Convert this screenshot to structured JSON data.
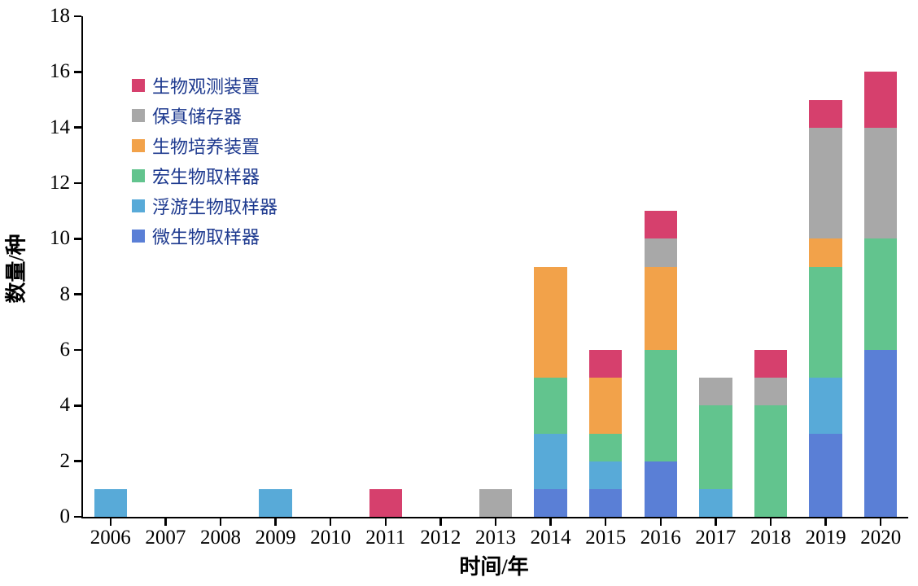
{
  "chart_data": {
    "type": "bar",
    "stacked": true,
    "title": "",
    "xlabel": "时间/年",
    "ylabel": "数量/种",
    "categories": [
      "2006",
      "2007",
      "2008",
      "2009",
      "2010",
      "2011",
      "2012",
      "2013",
      "2014",
      "2015",
      "2016",
      "2017",
      "2018",
      "2019",
      "2020"
    ],
    "series": [
      {
        "name": "微生物取样器",
        "color": "#5a7fd6",
        "values": [
          0,
          0,
          0,
          0,
          0,
          0,
          0,
          0,
          1,
          1,
          2,
          0,
          0,
          3,
          6
        ]
      },
      {
        "name": "浮游生物取样器",
        "color": "#58aad8",
        "values": [
          1,
          0,
          0,
          1,
          0,
          0,
          0,
          0,
          2,
          1,
          0,
          1,
          0,
          2,
          0
        ]
      },
      {
        "name": "宏生物取样器",
        "color": "#62c48e",
        "values": [
          0,
          0,
          0,
          0,
          0,
          0,
          0,
          0,
          2,
          1,
          4,
          3,
          4,
          4,
          4
        ]
      },
      {
        "name": "生物培养装置",
        "color": "#f2a24a",
        "values": [
          0,
          0,
          0,
          0,
          0,
          0,
          0,
          0,
          4,
          2,
          3,
          0,
          0,
          1,
          0
        ]
      },
      {
        "name": "保真储存器",
        "color": "#a8a8a8",
        "values": [
          0,
          0,
          0,
          0,
          0,
          0,
          0,
          1,
          0,
          0,
          1,
          1,
          1,
          4,
          4
        ]
      },
      {
        "name": "生物观测装置",
        "color": "#d6406d",
        "values": [
          0,
          0,
          0,
          0,
          0,
          1,
          0,
          0,
          0,
          1,
          1,
          0,
          1,
          1,
          2
        ]
      }
    ],
    "legend_order_top_to_bottom": [
      "生物观测装置",
      "保真储存器",
      "生物培养装置",
      "宏生物取样器",
      "浮游生物取样器",
      "微生物取样器"
    ],
    "legend_position": "upper-left-inside",
    "legend_text_color": "#1e3a8f",
    "ylim": [
      0,
      18
    ],
    "yticks": [
      0,
      2,
      4,
      6,
      8,
      10,
      12,
      14,
      16,
      18
    ],
    "grid": false,
    "bar_width_fraction": 0.6,
    "axis_color": "#000000",
    "background_color": "#ffffff"
  }
}
